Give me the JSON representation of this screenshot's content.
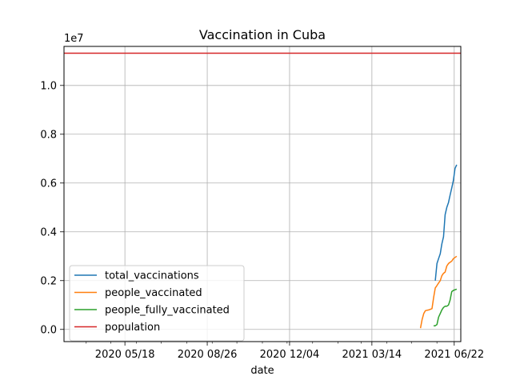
{
  "chart_data": {
    "type": "line",
    "title": "Vaccination in Cuba",
    "xlabel": "date",
    "ylabel": "",
    "y_scale_label": "1e7",
    "x_range": [
      "2020-03-05",
      "2021-06-30"
    ],
    "ylim": [
      -0.05,
      1.16
    ],
    "grid": true,
    "legend_position": "lower-left",
    "x_ticks": [
      {
        "date": "2020-05-18",
        "label": "2020 05/18"
      },
      {
        "date": "2020-08-26",
        "label": "2020 08/26"
      },
      {
        "date": "2020-12-04",
        "label": "2020 12/04"
      },
      {
        "date": "2021-03-14",
        "label": "2021 03/14"
      },
      {
        "date": "2021-06-22",
        "label": "2021 06/22"
      }
    ],
    "y_ticks": [
      {
        "value": 0.0,
        "label": "0.0"
      },
      {
        "value": 0.2,
        "label": "0.2"
      },
      {
        "value": 0.4,
        "label": "0.4"
      },
      {
        "value": 0.6,
        "label": "0.6"
      },
      {
        "value": 0.8,
        "label": "0.8"
      },
      {
        "value": 1.0,
        "label": "1.0"
      }
    ],
    "series": [
      {
        "name": "total_vaccinations",
        "color": "#1f77b4",
        "points": [
          [
            "2021-05-30",
            0.2
          ],
          [
            "2021-06-01",
            0.27
          ],
          [
            "2021-06-03",
            0.29
          ],
          [
            "2021-06-05",
            0.31
          ],
          [
            "2021-06-07",
            0.35
          ],
          [
            "2021-06-09",
            0.38
          ],
          [
            "2021-06-11",
            0.47
          ],
          [
            "2021-06-13",
            0.5
          ],
          [
            "2021-06-15",
            0.52
          ],
          [
            "2021-06-17",
            0.55
          ],
          [
            "2021-06-19",
            0.58
          ],
          [
            "2021-06-21",
            0.61
          ],
          [
            "2021-06-23",
            0.66
          ],
          [
            "2021-06-25",
            0.675
          ]
        ]
      },
      {
        "name": "people_vaccinated",
        "color": "#ff7f0e",
        "points": [
          [
            "2021-05-12",
            0.005
          ],
          [
            "2021-05-14",
            0.04
          ],
          [
            "2021-05-16",
            0.065
          ],
          [
            "2021-05-18",
            0.077
          ],
          [
            "2021-05-22",
            0.08
          ],
          [
            "2021-05-26",
            0.085
          ],
          [
            "2021-05-28",
            0.13
          ],
          [
            "2021-05-30",
            0.17
          ],
          [
            "2021-06-01",
            0.18
          ],
          [
            "2021-06-03",
            0.19
          ],
          [
            "2021-06-05",
            0.2
          ],
          [
            "2021-06-07",
            0.22
          ],
          [
            "2021-06-09",
            0.23
          ],
          [
            "2021-06-11",
            0.235
          ],
          [
            "2021-06-13",
            0.26
          ],
          [
            "2021-06-15",
            0.27
          ],
          [
            "2021-06-17",
            0.275
          ],
          [
            "2021-06-19",
            0.28
          ],
          [
            "2021-06-21",
            0.29
          ],
          [
            "2021-06-25",
            0.3
          ]
        ]
      },
      {
        "name": "people_fully_vaccinated",
        "color": "#2ca02c",
        "points": [
          [
            "2021-05-28",
            0.015
          ],
          [
            "2021-05-30",
            0.015
          ],
          [
            "2021-06-01",
            0.02
          ],
          [
            "2021-06-03",
            0.05
          ],
          [
            "2021-06-05",
            0.065
          ],
          [
            "2021-06-07",
            0.08
          ],
          [
            "2021-06-09",
            0.09
          ],
          [
            "2021-06-11",
            0.095
          ],
          [
            "2021-06-13",
            0.095
          ],
          [
            "2021-06-15",
            0.1
          ],
          [
            "2021-06-17",
            0.12
          ],
          [
            "2021-06-19",
            0.155
          ],
          [
            "2021-06-21",
            0.16
          ],
          [
            "2021-06-25",
            0.165
          ]
        ]
      },
      {
        "name": "population",
        "color": "#d62728",
        "points": [
          [
            "2020-03-05",
            1.132
          ],
          [
            "2021-06-30",
            1.132
          ]
        ]
      }
    ]
  }
}
